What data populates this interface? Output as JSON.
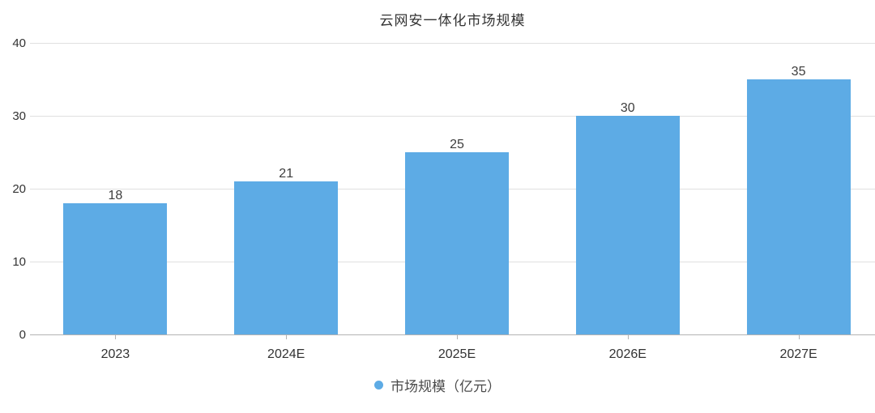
{
  "chart_data": {
    "type": "bar",
    "title": "云网安一体化市场规模",
    "categories": [
      "2023",
      "2024E",
      "2025E",
      "2026E",
      "2027E"
    ],
    "values": [
      18,
      21,
      25,
      30,
      35
    ],
    "series_name": "市场规模（亿元）",
    "xlabel": "",
    "ylabel": "",
    "ylim": [
      0,
      40
    ],
    "yticks": [
      0,
      10,
      20,
      30,
      40
    ],
    "grid": true,
    "legend_position": "bottom",
    "bar_color": "#5dabe5",
    "grid_color": "#e0e0e0",
    "axis_color": "#b3b3b3",
    "text_color": "#333333"
  }
}
